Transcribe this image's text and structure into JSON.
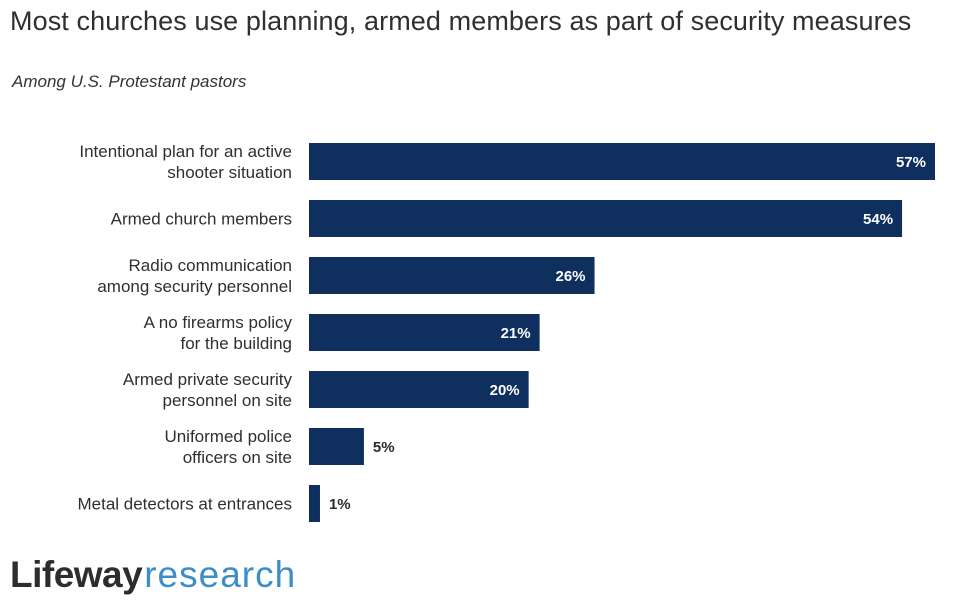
{
  "title": "Most churches use planning, armed members as part of security measures",
  "subtitle": "Among U.S. Protestant pastors",
  "logo": {
    "part1": "Lifeway",
    "part2": "research"
  },
  "colors": {
    "bar": "#0f2f5e",
    "value_inside": "#ffffff",
    "value_outside": "#2b2b2b",
    "logo_accent": "#3d8dc6"
  },
  "chart_data": {
    "type": "bar",
    "orientation": "horizontal",
    "categories": [
      [
        "Intentional plan for an active",
        "shooter situation"
      ],
      [
        "Armed church members"
      ],
      [
        "Radio communication",
        "among security personnel"
      ],
      [
        "A no firearms policy",
        "for the building"
      ],
      [
        "Armed private security",
        "personnel on site"
      ],
      [
        "Uniformed police",
        "officers on site"
      ],
      [
        "Metal detectors at entrances"
      ]
    ],
    "values": [
      57,
      54,
      26,
      21,
      20,
      5,
      1
    ],
    "value_labels": [
      "57%",
      "54%",
      "26%",
      "21%",
      "20%",
      "5%",
      "1%"
    ],
    "unit": "%",
    "xlim": [
      0,
      57
    ],
    "grid": false,
    "legend": "none"
  }
}
